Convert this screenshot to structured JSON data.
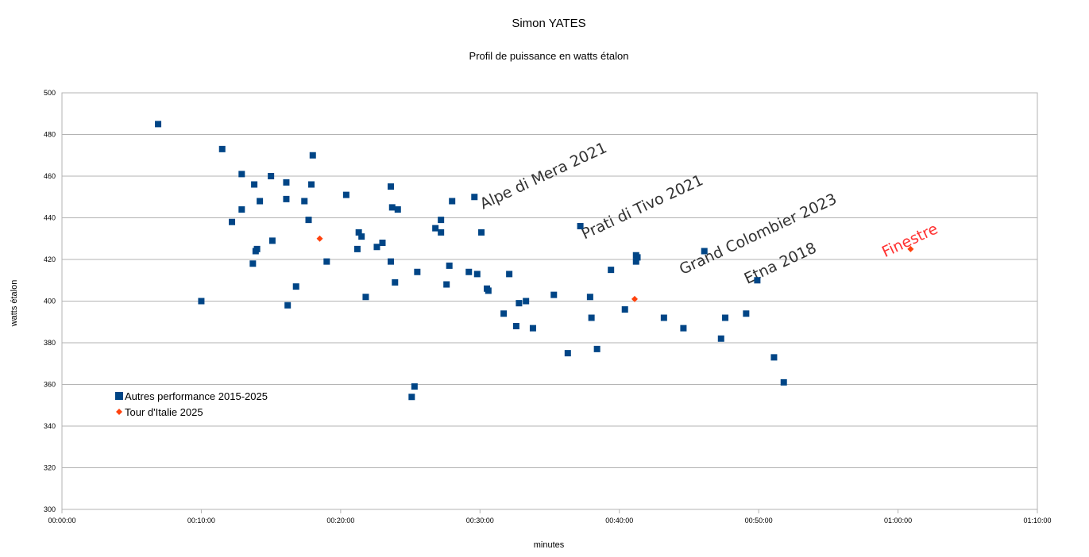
{
  "chart_data": {
    "type": "scatter",
    "title": "Simon YATES",
    "subtitle": "Profil de puissance en watts étalon",
    "xlabel": "minutes",
    "ylabel": "watts étalon",
    "x_unit": "minutes",
    "xlim": [
      0,
      70
    ],
    "ylim": [
      300,
      500
    ],
    "x_ticks": [
      {
        "value": 0,
        "label": "00:00:00"
      },
      {
        "value": 10,
        "label": "00:10:00"
      },
      {
        "value": 20,
        "label": "00:20:00"
      },
      {
        "value": 30,
        "label": "00:30:00"
      },
      {
        "value": 40,
        "label": "00:40:00"
      },
      {
        "value": 50,
        "label": "00:50:00"
      },
      {
        "value": 60,
        "label": "01:00:00"
      },
      {
        "value": 70,
        "label": "01:10:00"
      }
    ],
    "y_ticks": [
      300,
      320,
      340,
      360,
      380,
      400,
      420,
      440,
      460,
      480,
      500
    ],
    "grid": "horizontal",
    "legend_position": "lower-left",
    "series": [
      {
        "name": "Autres performance 2015-2025",
        "color": "#004586",
        "marker": "square",
        "points": [
          [
            6.9,
            485
          ],
          [
            10.0,
            400
          ],
          [
            11.5,
            473
          ],
          [
            12.2,
            438
          ],
          [
            12.9,
            461
          ],
          [
            12.9,
            444
          ],
          [
            13.7,
            418
          ],
          [
            13.8,
            456
          ],
          [
            13.9,
            424
          ],
          [
            14.0,
            425
          ],
          [
            14.2,
            448
          ],
          [
            15.0,
            460
          ],
          [
            15.1,
            429
          ],
          [
            16.1,
            457
          ],
          [
            16.1,
            449
          ],
          [
            16.2,
            398
          ],
          [
            16.8,
            407
          ],
          [
            17.4,
            448
          ],
          [
            17.7,
            439
          ],
          [
            17.9,
            456
          ],
          [
            18.0,
            470
          ],
          [
            19.0,
            419
          ],
          [
            20.4,
            451
          ],
          [
            21.2,
            425
          ],
          [
            21.3,
            433
          ],
          [
            21.5,
            431
          ],
          [
            21.8,
            402
          ],
          [
            22.6,
            426
          ],
          [
            23.0,
            428
          ],
          [
            23.6,
            455
          ],
          [
            23.6,
            419
          ],
          [
            23.7,
            445
          ],
          [
            23.9,
            409
          ],
          [
            24.1,
            444
          ],
          [
            25.1,
            354
          ],
          [
            25.3,
            359
          ],
          [
            25.5,
            414
          ],
          [
            26.8,
            435
          ],
          [
            27.2,
            439
          ],
          [
            27.2,
            433
          ],
          [
            27.6,
            408
          ],
          [
            27.8,
            417
          ],
          [
            28.0,
            448
          ],
          [
            29.2,
            414
          ],
          [
            29.6,
            450
          ],
          [
            29.8,
            413
          ],
          [
            30.1,
            433
          ],
          [
            30.5,
            406
          ],
          [
            30.6,
            405
          ],
          [
            31.7,
            394
          ],
          [
            32.1,
            413
          ],
          [
            32.6,
            388
          ],
          [
            32.8,
            399
          ],
          [
            33.3,
            400
          ],
          [
            33.8,
            387
          ],
          [
            35.3,
            403
          ],
          [
            36.3,
            375
          ],
          [
            37.2,
            436
          ],
          [
            37.9,
            402
          ],
          [
            38.0,
            392
          ],
          [
            38.4,
            377
          ],
          [
            39.4,
            415
          ],
          [
            40.4,
            396
          ],
          [
            41.2,
            422
          ],
          [
            41.2,
            419
          ],
          [
            41.3,
            421
          ],
          [
            43.2,
            392
          ],
          [
            44.6,
            387
          ],
          [
            46.1,
            424
          ],
          [
            47.3,
            382
          ],
          [
            47.6,
            392
          ],
          [
            49.1,
            394
          ],
          [
            49.9,
            410
          ],
          [
            51.1,
            373
          ],
          [
            51.8,
            361
          ]
        ]
      },
      {
        "name": "Tour d'Italie 2025",
        "color": "#ff420e",
        "marker": "diamond",
        "points": [
          [
            18.5,
            430
          ],
          [
            41.1,
            401
          ],
          [
            60.9,
            425
          ]
        ]
      }
    ],
    "annotations": [
      {
        "text": "Alpe di Mera 2021",
        "x": 34.7,
        "y": 458,
        "color": "#333333"
      },
      {
        "text": "Prati di Tivo 2021",
        "x": 41.8,
        "y": 443,
        "color": "#333333"
      },
      {
        "text": "Grand Colombier 2023",
        "x": 50.1,
        "y": 430,
        "color": "#333333"
      },
      {
        "text": "Etna 2018",
        "x": 51.7,
        "y": 416,
        "color": "#333333"
      },
      {
        "text": "Finestre",
        "x": 61.0,
        "y": 427,
        "color": "#ff3333"
      }
    ]
  }
}
